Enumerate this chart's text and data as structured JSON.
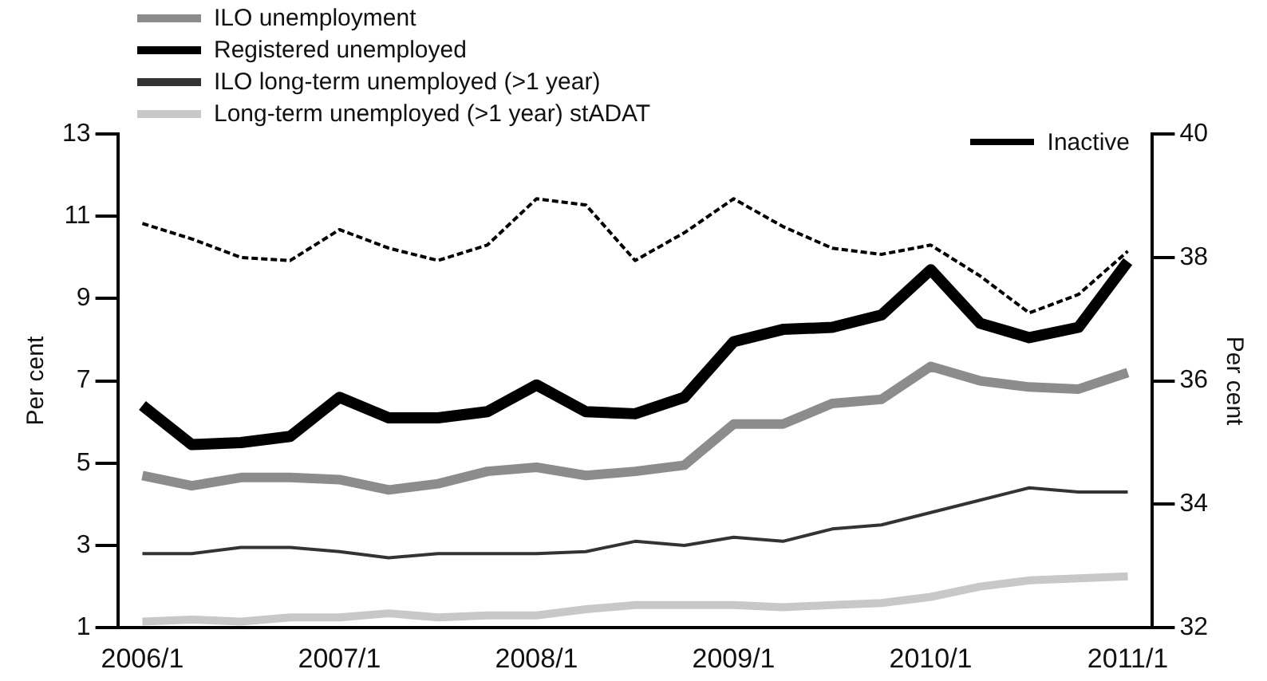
{
  "chart_data": {
    "type": "line",
    "ylabel": "Per cent",
    "y2label": "Per cent",
    "categories": [
      "2006/1",
      null,
      null,
      null,
      "2007/1",
      null,
      null,
      null,
      "2008/1",
      null,
      null,
      null,
      "2009/1",
      null,
      null,
      null,
      "2010/1",
      null,
      null,
      null,
      "2011/1"
    ],
    "series": [
      {
        "name": "ILO unemployment",
        "color": "#8c8c8c",
        "values": [
          4.7,
          4.45,
          4.65,
          4.65,
          4.6,
          4.35,
          4.5,
          4.8,
          4.9,
          4.7,
          4.8,
          4.95,
          5.95,
          5.95,
          6.45,
          6.55,
          7.35,
          7.0,
          6.85,
          6.8,
          7.2
        ]
      },
      {
        "name": "Registered unemployed",
        "color": "#000000",
        "values": [
          6.4,
          5.45,
          5.5,
          5.65,
          6.6,
          6.1,
          6.1,
          6.25,
          6.9,
          6.25,
          6.2,
          6.6,
          7.95,
          8.25,
          8.3,
          8.6,
          9.7,
          8.4,
          8.05,
          8.3,
          9.9
        ]
      },
      {
        "name": "ILO long-term unemployed (>1 year)",
        "color": "#333333",
        "values": [
          2.8,
          2.8,
          2.95,
          2.95,
          2.85,
          2.7,
          2.8,
          2.8,
          2.8,
          2.85,
          3.1,
          3.0,
          3.2,
          3.1,
          3.4,
          3.5,
          3.8,
          4.1,
          4.4,
          4.3,
          4.3
        ]
      },
      {
        "name": "Long-term unemployed (>1 year) stADAT",
        "color": "#c8c8c8",
        "values": [
          1.15,
          1.2,
          1.15,
          1.25,
          1.25,
          1.35,
          1.25,
          1.3,
          1.3,
          1.45,
          1.55,
          1.55,
          1.55,
          1.5,
          1.55,
          1.6,
          1.75,
          2.0,
          2.15,
          2.2,
          2.25
        ]
      },
      {
        "name": "Inactive",
        "color": "#000000",
        "axis": "y2",
        "line_style": "dashed",
        "values": [
          38.55,
          38.3,
          38.0,
          37.95,
          38.45,
          38.15,
          37.95,
          38.2,
          38.95,
          38.85,
          37.95,
          38.4,
          38.95,
          38.5,
          38.15,
          38.05,
          38.2,
          37.7,
          37.1,
          37.4,
          38.1
        ]
      }
    ],
    "ylim": [
      1,
      13
    ],
    "yticks": [
      1,
      3,
      5,
      7,
      9,
      11,
      13
    ],
    "y2lim": [
      32,
      40
    ],
    "y2ticks": [
      32,
      34,
      36,
      38,
      40
    ],
    "grid": false,
    "legend": "top left"
  }
}
